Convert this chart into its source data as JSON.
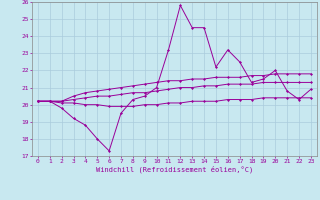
{
  "x_values": [
    0,
    1,
    2,
    3,
    4,
    5,
    6,
    7,
    8,
    9,
    10,
    11,
    12,
    13,
    14,
    15,
    16,
    17,
    18,
    19,
    20,
    21,
    22,
    23
  ],
  "line1": [
    20.2,
    20.2,
    19.8,
    19.2,
    18.8,
    18.0,
    17.3,
    19.5,
    20.3,
    20.5,
    21.0,
    23.2,
    25.8,
    24.5,
    24.5,
    22.2,
    23.2,
    22.5,
    21.3,
    21.5,
    22.0,
    20.8,
    20.3,
    20.9
  ],
  "line2": [
    20.2,
    20.2,
    20.2,
    20.5,
    20.7,
    20.8,
    20.9,
    21.0,
    21.1,
    21.2,
    21.3,
    21.4,
    21.4,
    21.5,
    21.5,
    21.6,
    21.6,
    21.6,
    21.7,
    21.7,
    21.8,
    21.8,
    21.8,
    21.8
  ],
  "line3": [
    20.2,
    20.2,
    20.2,
    20.3,
    20.4,
    20.5,
    20.5,
    20.6,
    20.7,
    20.7,
    20.8,
    20.9,
    21.0,
    21.0,
    21.1,
    21.1,
    21.2,
    21.2,
    21.2,
    21.3,
    21.3,
    21.3,
    21.3,
    21.3
  ],
  "line4": [
    20.2,
    20.2,
    20.1,
    20.1,
    20.0,
    20.0,
    19.9,
    19.9,
    19.9,
    20.0,
    20.0,
    20.1,
    20.1,
    20.2,
    20.2,
    20.2,
    20.3,
    20.3,
    20.3,
    20.4,
    20.4,
    20.4,
    20.4,
    20.4
  ],
  "line_color": "#990099",
  "bg_color": "#c8e8f0",
  "grid_color": "#aaccdd",
  "xlabel": "Windchill (Refroidissement éolien,°C)",
  "ylim": [
    17,
    26
  ],
  "xlim": [
    -0.5,
    23.5
  ],
  "yticks": [
    17,
    18,
    19,
    20,
    21,
    22,
    23,
    24,
    25,
    26
  ],
  "xticks": [
    0,
    1,
    2,
    3,
    4,
    5,
    6,
    7,
    8,
    9,
    10,
    11,
    12,
    13,
    14,
    15,
    16,
    17,
    18,
    19,
    20,
    21,
    22,
    23
  ],
  "tick_fontsize": 4.5,
  "xlabel_fontsize": 5.0,
  "marker": "D",
  "markersize": 1.5,
  "linewidth": 0.7
}
